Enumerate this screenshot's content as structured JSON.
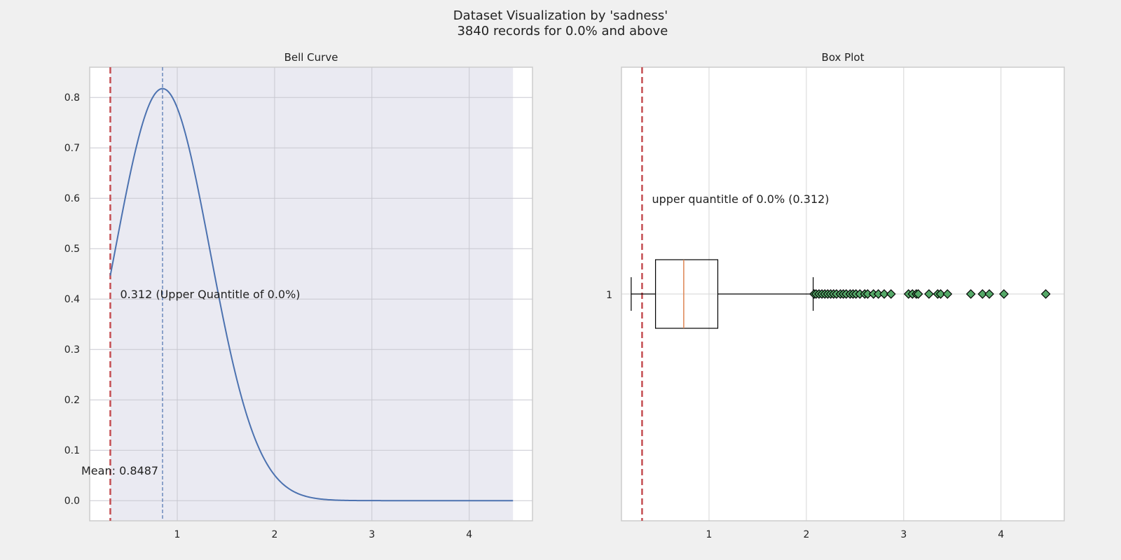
{
  "figure": {
    "title_line1": "Dataset Visualization by 'sadness'",
    "title_line2": " 3840 records for 0.0% and above"
  },
  "chart_data": [
    {
      "type": "line",
      "title": "Bell Curve",
      "xlabel": "",
      "ylabel": "",
      "xlim": [
        0.1,
        4.65
      ],
      "ylim": [
        -0.04,
        0.86
      ],
      "xticks": [
        1,
        2,
        3,
        4
      ],
      "yticks": [
        0.0,
        0.1,
        0.2,
        0.3,
        0.4,
        0.5,
        0.6,
        0.7,
        0.8
      ],
      "grid": true,
      "shaded_region": [
        0.312,
        4.45
      ],
      "series": [
        {
          "distribution": "normal",
          "mean": 0.8487,
          "std": 0.488,
          "x_range": [
            0.312,
            4.45
          ]
        }
      ],
      "mean_line": {
        "x": 0.8487,
        "label": "Mean: 0.8487",
        "color": "#4c72b0"
      },
      "threshold_line": {
        "x": 0.312,
        "label": "0.312 (Upper Quantitle of 0.0%)",
        "color": "#c44e52"
      }
    },
    {
      "type": "box",
      "title": "Box Plot",
      "xlim": [
        0.1,
        4.65
      ],
      "xticks": [
        1,
        2,
        3,
        4
      ],
      "ytick_label": "1",
      "grid": true,
      "box": {
        "whisker_low": 0.2,
        "q1": 0.45,
        "median": 0.74,
        "q3": 1.09,
        "whisker_high": 2.07
      },
      "outliers": [
        2.08,
        2.1,
        2.13,
        2.16,
        2.19,
        2.22,
        2.25,
        2.28,
        2.31,
        2.35,
        2.38,
        2.41,
        2.45,
        2.48,
        2.51,
        2.55,
        2.6,
        2.63,
        2.69,
        2.74,
        2.8,
        2.87,
        3.05,
        3.09,
        3.13,
        3.15,
        3.26,
        3.35,
        3.38,
        3.45,
        3.69,
        3.81,
        3.88,
        4.03,
        4.46
      ],
      "threshold_line": {
        "x": 0.312,
        "label": "upper quantitle of 0.0% (0.312)",
        "color": "#c44e52"
      },
      "colors": {
        "median": "#dd8452",
        "outlier": "#55a868"
      }
    }
  ]
}
